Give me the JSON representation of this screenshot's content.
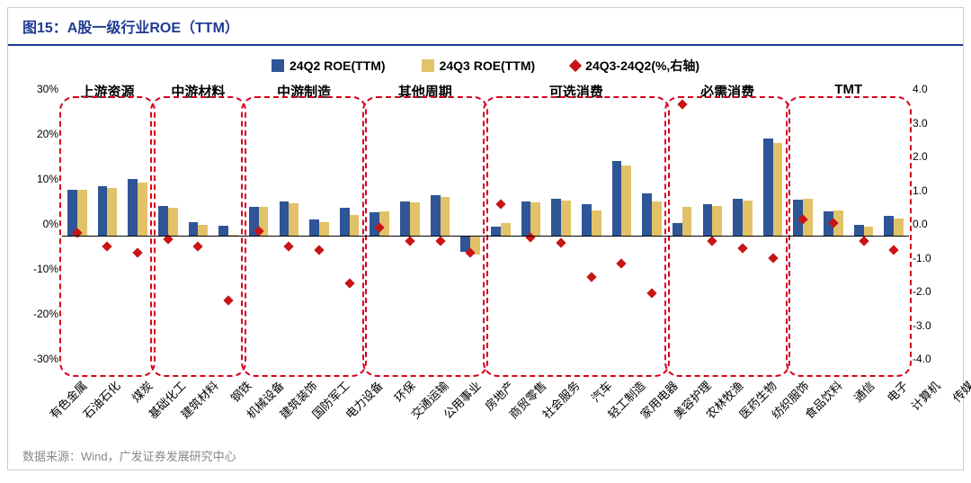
{
  "title": "图15：A股一级行业ROE（TTM）",
  "source": "数据来源：Wind，广发证券发展研究中心",
  "legend": {
    "s1": "24Q2 ROE(TTM)",
    "s2": "24Q3 ROE(TTM)",
    "s3": "24Q3-24Q2(%,右轴)"
  },
  "colors": {
    "s1": "#2f5597",
    "s2": "#e2c268",
    "s3": "#c81414",
    "group_border": "#d9001b",
    "title": "#1f3a93"
  },
  "y_left": {
    "min": -30,
    "max": 30,
    "ticks": [
      -30,
      -20,
      -10,
      0,
      10,
      20,
      30
    ],
    "fmt": "pct"
  },
  "y_right": {
    "min": -4,
    "max": 4,
    "ticks": [
      -4,
      -3,
      -2,
      -1,
      0,
      1,
      2,
      3,
      4
    ],
    "fmt": "num1"
  },
  "bar_width_pct": 1.0,
  "groups": [
    {
      "label": "上游资源",
      "start": 0,
      "end": 2
    },
    {
      "label": "中游材料",
      "start": 3,
      "end": 5
    },
    {
      "label": "中游制造",
      "start": 6,
      "end": 9
    },
    {
      "label": "其他周期",
      "start": 10,
      "end": 13
    },
    {
      "label": "可选消费",
      "start": 14,
      "end": 19
    },
    {
      "label": "必需消费",
      "start": 20,
      "end": 23
    },
    {
      "label": "TMT",
      "start": 24,
      "end": 27
    }
  ],
  "categories": [
    {
      "name": "有色金属",
      "q2": 10.5,
      "q3": 10.5,
      "d": -0.1
    },
    {
      "name": "石油石化",
      "q2": 11.2,
      "q3": 10.8,
      "d": -0.5
    },
    {
      "name": "煤炭",
      "q2": 12.8,
      "q3": 12.0,
      "d": -0.7
    },
    {
      "name": "基础化工",
      "q2": 6.8,
      "q3": 6.5,
      "d": -0.3
    },
    {
      "name": "建筑材料",
      "q2": 3.2,
      "q3": 2.7,
      "d": -0.5
    },
    {
      "name": "钢铁",
      "q2": 2.5,
      "q3": 0.4,
      "d": -2.1
    },
    {
      "name": "机械设备",
      "q2": 6.7,
      "q3": 6.7,
      "d": -0.05
    },
    {
      "name": "建筑装饰",
      "q2": 7.9,
      "q3": 7.4,
      "d": -0.5
    },
    {
      "name": "国防军工",
      "q2": 3.8,
      "q3": 3.2,
      "d": -0.6
    },
    {
      "name": "电力设备",
      "q2": 6.5,
      "q3": 4.9,
      "d": -1.6
    },
    {
      "name": "环保",
      "q2": 5.5,
      "q3": 5.6,
      "d": 0.05
    },
    {
      "name": "交通运输",
      "q2": 7.9,
      "q3": 7.6,
      "d": -0.35
    },
    {
      "name": "公用事业",
      "q2": 9.3,
      "q3": 8.9,
      "d": -0.35
    },
    {
      "name": "房地产",
      "q2": -3.3,
      "q3": -4.0,
      "d": -0.7
    },
    {
      "name": "商贸零售",
      "q2": 2.3,
      "q3": 3.0,
      "d": 0.75
    },
    {
      "name": "社会服务",
      "q2": 7.9,
      "q3": 7.7,
      "d": -0.25
    },
    {
      "name": "汽车",
      "q2": 8.5,
      "q3": 8.1,
      "d": -0.4
    },
    {
      "name": "轻工制造",
      "q2": 7.2,
      "q3": 5.8,
      "d": -1.4
    },
    {
      "name": "家用电器",
      "q2": 16.8,
      "q3": 15.8,
      "d": -1.0
    },
    {
      "name": "美容护理",
      "q2": 9.7,
      "q3": 7.8,
      "d": -1.9
    },
    {
      "name": "农林牧渔",
      "q2": 3.0,
      "q3": 6.7,
      "d": 3.7
    },
    {
      "name": "医药生物",
      "q2": 7.2,
      "q3": 6.9,
      "d": -0.35
    },
    {
      "name": "纺织服饰",
      "q2": 8.5,
      "q3": 8.0,
      "d": -0.55
    },
    {
      "name": "食品饮料",
      "q2": 21.8,
      "q3": 20.9,
      "d": -0.85
    },
    {
      "name": "通信",
      "q2": 8.2,
      "q3": 8.5,
      "d": 0.3
    },
    {
      "name": "电子",
      "q2": 5.7,
      "q3": 5.9,
      "d": 0.2
    },
    {
      "name": "计算机",
      "q2": 2.6,
      "q3": 2.2,
      "d": -0.35
    },
    {
      "name": "传媒",
      "q2": 4.6,
      "q3": 4.0,
      "d": -0.6
    }
  ]
}
